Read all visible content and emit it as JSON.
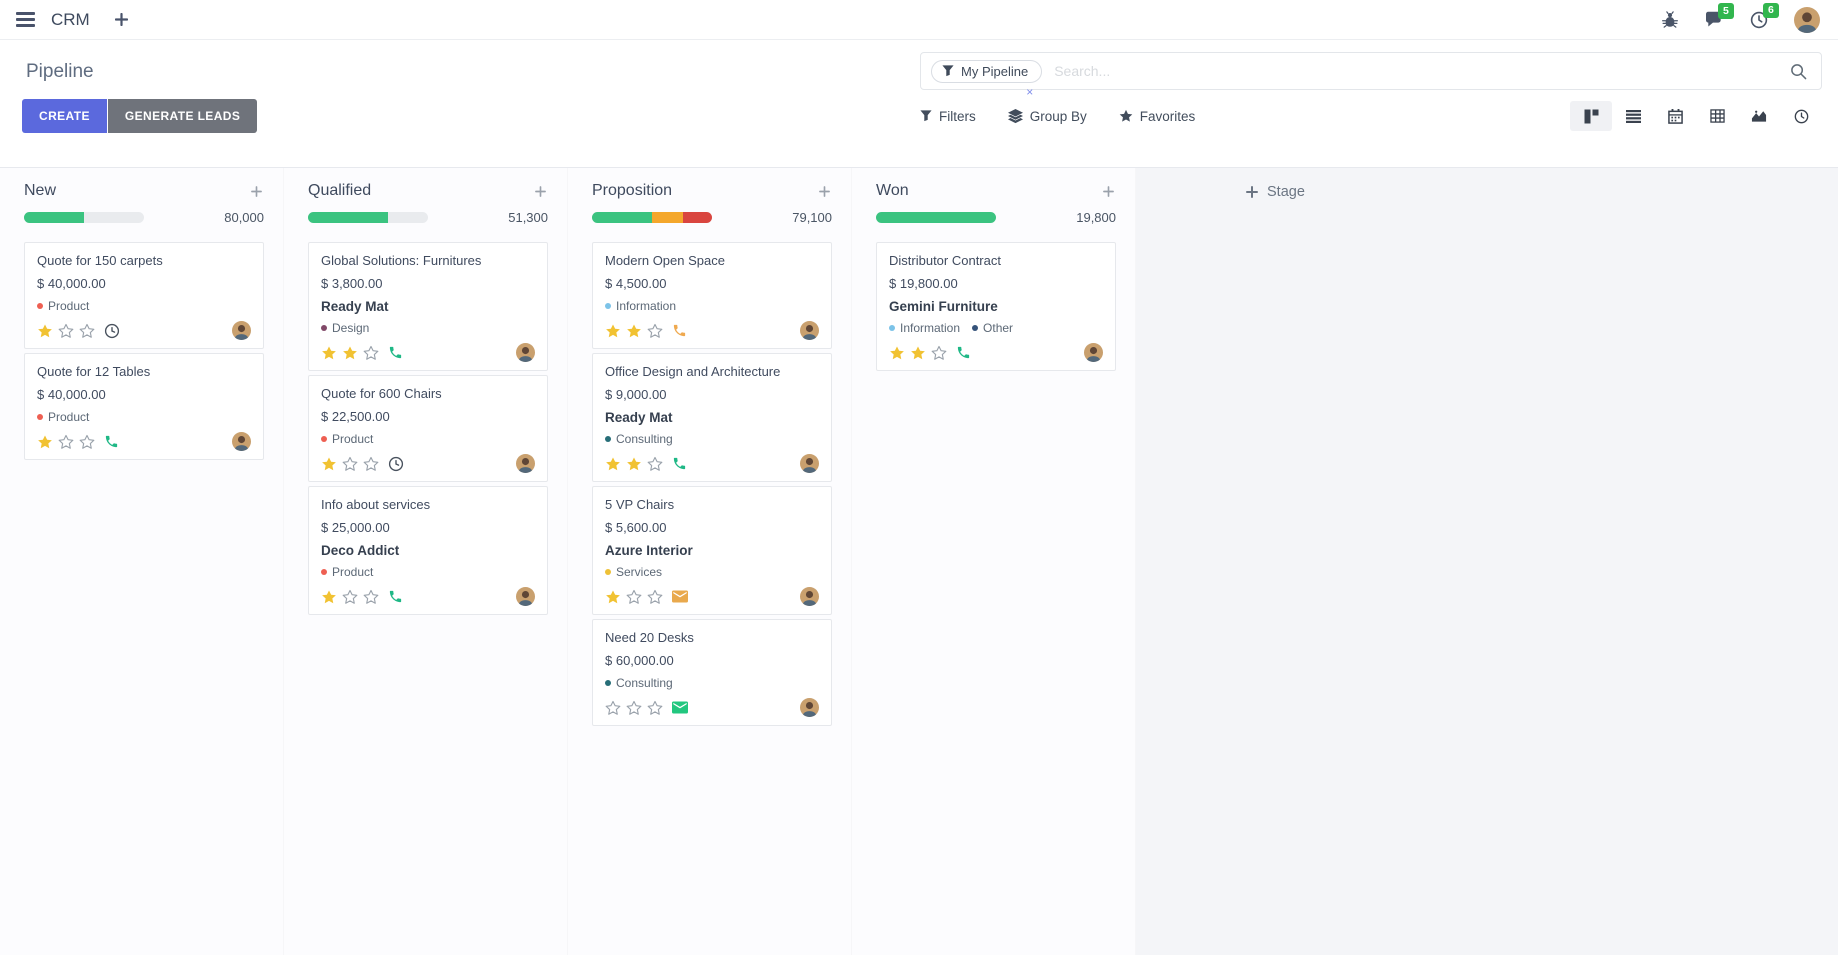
{
  "topbar": {
    "app_name": "CRM",
    "message_badge": "5",
    "activity_badge": "6"
  },
  "control_panel": {
    "title": "Pipeline",
    "create_label": "CREATE",
    "generate_leads_label": "GENERATE LEADS",
    "search": {
      "facet": "My Pipeline",
      "facet_remove": "×",
      "placeholder": "Search..."
    },
    "filters_label": "Filters",
    "group_by_label": "Group By",
    "favorites_label": "Favorites",
    "views": [
      "kanban",
      "list",
      "calendar",
      "pivot",
      "graph",
      "activity"
    ],
    "active_view": "kanban"
  },
  "kanban": {
    "add_stage_label": "Stage",
    "columns": [
      {
        "name": "New",
        "total": "80,000",
        "progress": [
          {
            "color": "#3bc380",
            "pct": 50
          }
        ],
        "cards": [
          {
            "title": "Quote for 150 carpets",
            "amount": "$ 40,000.00",
            "company": "",
            "tags": [
              {
                "label": "Product",
                "color": "#ee5f52"
              }
            ],
            "stars_filled": 1,
            "stars_total": 3,
            "activity_icon": {
              "type": "clock",
              "color": "#49525e"
            }
          },
          {
            "title": "Quote for 12 Tables",
            "amount": "$ 40,000.00",
            "company": "",
            "tags": [
              {
                "label": "Product",
                "color": "#ee5f52"
              }
            ],
            "stars_filled": 1,
            "stars_total": 3,
            "activity_icon": {
              "type": "phone",
              "color": "#1fb886"
            }
          }
        ]
      },
      {
        "name": "Qualified",
        "total": "51,300",
        "progress": [
          {
            "color": "#3bc380",
            "pct": 67
          }
        ],
        "cards": [
          {
            "title": "Global Solutions: Furnitures",
            "amount": "$ 3,800.00",
            "company": "Ready Mat",
            "tags": [
              {
                "label": "Design",
                "color": "#814968"
              }
            ],
            "stars_filled": 2,
            "stars_total": 3,
            "activity_icon": {
              "type": "phone",
              "color": "#1fb886"
            }
          },
          {
            "title": "Quote for 600 Chairs",
            "amount": "$ 22,500.00",
            "company": "",
            "tags": [
              {
                "label": "Product",
                "color": "#ee5f52"
              }
            ],
            "stars_filled": 1,
            "stars_total": 3,
            "activity_icon": {
              "type": "clock",
              "color": "#49525e"
            }
          },
          {
            "title": "Info about services",
            "amount": "$ 25,000.00",
            "company": "Deco Addict",
            "tags": [
              {
                "label": "Product",
                "color": "#ee5f52"
              }
            ],
            "stars_filled": 1,
            "stars_total": 3,
            "activity_icon": {
              "type": "phone",
              "color": "#1fb886"
            }
          }
        ]
      },
      {
        "name": "Proposition",
        "total": "79,100",
        "progress": [
          {
            "color": "#3bc380",
            "pct": 50
          },
          {
            "color": "#f4a72c",
            "pct": 26
          },
          {
            "color": "#d9453f",
            "pct": 24
          }
        ],
        "cards": [
          {
            "title": "Modern Open Space",
            "amount": "$ 4,500.00",
            "company": "",
            "tags": [
              {
                "label": "Information",
                "color": "#7cc3e8"
              }
            ],
            "stars_filled": 2,
            "stars_total": 3,
            "activity_icon": {
              "type": "phone",
              "color": "#efa94f"
            }
          },
          {
            "title": "Office Design and Architecture",
            "amount": "$ 9,000.00",
            "company": "Ready Mat",
            "tags": [
              {
                "label": "Consulting",
                "color": "#276e78"
              }
            ],
            "stars_filled": 2,
            "stars_total": 3,
            "activity_icon": {
              "type": "phone",
              "color": "#1fb886"
            }
          },
          {
            "title": "5 VP Chairs",
            "amount": "$ 5,600.00",
            "company": "Azure Interior",
            "tags": [
              {
                "label": "Services",
                "color": "#eec137"
              }
            ],
            "stars_filled": 1,
            "stars_total": 3,
            "activity_icon": {
              "type": "envelope",
              "color": "#e9a94d"
            }
          },
          {
            "title": "Need 20 Desks",
            "amount": "$ 60,000.00",
            "company": "",
            "tags": [
              {
                "label": "Consulting",
                "color": "#276e78"
              }
            ],
            "stars_filled": 0,
            "stars_total": 3,
            "activity_icon": {
              "type": "envelope",
              "color": "#22c77f"
            }
          }
        ]
      },
      {
        "name": "Won",
        "total": "19,800",
        "progress": [
          {
            "color": "#3bc380",
            "pct": 100
          }
        ],
        "cards": [
          {
            "title": "Distributor Contract",
            "amount": "$ 19,800.00",
            "company": "Gemini Furniture",
            "tags": [
              {
                "label": "Information",
                "color": "#7cc3e8"
              },
              {
                "label": "Other",
                "color": "#35537a"
              }
            ],
            "stars_filled": 2,
            "stars_total": 3,
            "activity_icon": {
              "type": "phone",
              "color": "#1fb886"
            }
          }
        ]
      }
    ]
  }
}
